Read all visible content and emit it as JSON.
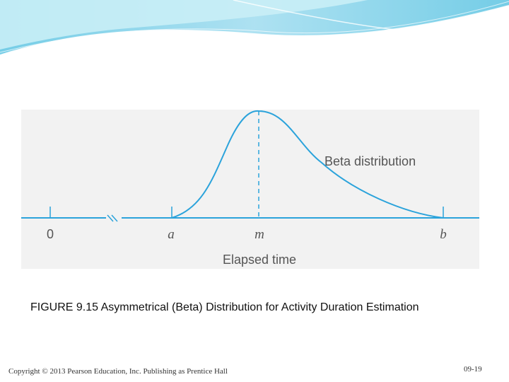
{
  "colors": {
    "accent": "#2ba3db",
    "banner_light": "#c9eef6",
    "banner_mid": "#7fd3ea"
  },
  "figure": {
    "axis_labels": {
      "zero": "0",
      "a": "a",
      "m": "m",
      "b": "b"
    },
    "curve_label": "Beta distribution",
    "x_axis_title": "Elapsed time"
  },
  "caption": "FIGURE 9.15  Asymmetrical (Beta) Distribution for Activity Duration Estimation",
  "footer": {
    "copyright": "Copyright © 2013 Pearson Education, Inc. Publishing as Prentice Hall",
    "slide_number": "09-19"
  }
}
